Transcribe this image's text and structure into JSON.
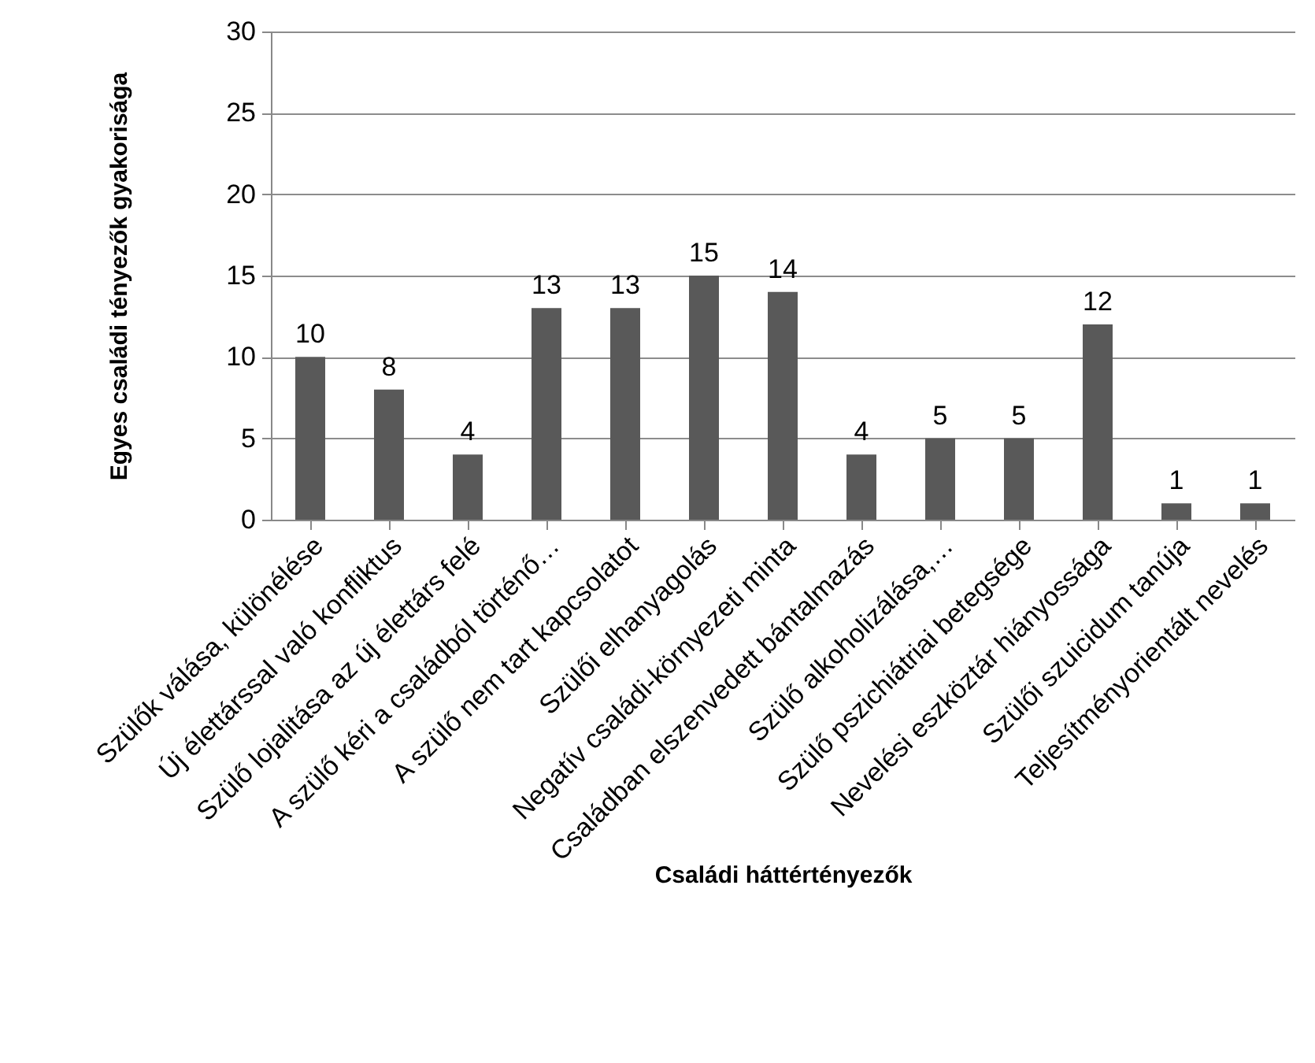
{
  "chart_data": {
    "type": "bar",
    "xlabel": "Családi háttértényezők",
    "ylabel": "Egyes családi tényezők gyakorisága",
    "categories": [
      "Szülők válása, különélése",
      "Új élettárssal való konfliktus",
      "Szülő lojalitása az új élettárs felé",
      "A szülő kéri a családból történő…",
      "A szülő nem tart kapcsolatot",
      "Szülői elhanyagolás",
      "Negatív családi-környezeti minta",
      "Családban elszenvedett bántalmazás",
      "Szülő alkoholizálása,…",
      "Szülő pszichiátriai betegsége",
      "Nevelési eszköztár hiányossága",
      "Szülői szuicidum tanúja",
      "Teljesítményorientált nevelés"
    ],
    "values": [
      10,
      8,
      4,
      13,
      13,
      15,
      14,
      4,
      5,
      5,
      12,
      1,
      1
    ],
    "color": "#595959",
    "ylim": [
      0,
      30
    ],
    "yticks": [
      0,
      5,
      10,
      15,
      20,
      25,
      30
    ],
    "grid": "y",
    "data_labels": true
  }
}
